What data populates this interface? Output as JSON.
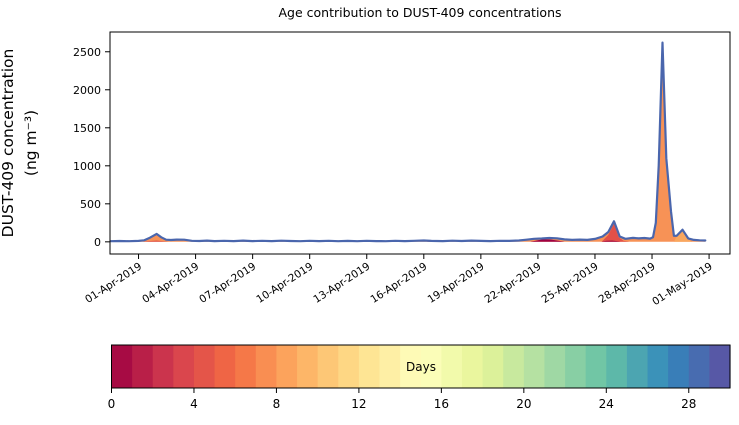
{
  "chart_data": {
    "type": "area",
    "title": "Age contribution to DUST-409 concentrations",
    "xlabel": "",
    "ylabel_line1": "DUST-409 concentration",
    "ylabel_line2": "(ng m⁻³)",
    "x_unit": "days since 01-Apr-2019 00:00",
    "xlim": [
      -1.5,
      31.1
    ],
    "ylim": [
      -160,
      2760
    ],
    "grid": false,
    "yticks": [
      0,
      500,
      1000,
      1500,
      2000,
      2500
    ],
    "xticks": {
      "positions": [
        0,
        3,
        6,
        9,
        12,
        15,
        18,
        21,
        24,
        27,
        30
      ],
      "labels": [
        "01-Apr-2019",
        "04-Apr-2019",
        "07-Apr-2019",
        "10-Apr-2019",
        "13-Apr-2019",
        "16-Apr-2019",
        "19-Apr-2019",
        "22-Apr-2019",
        "25-Apr-2019",
        "28-Apr-2019",
        "01-May-2019"
      ],
      "rotation_deg": -33
    },
    "line_color": "#4a66ad",
    "fill_color": "#f79256",
    "total": [
      [
        -1.45,
        8
      ],
      [
        -1.0,
        11
      ],
      [
        -0.5,
        8
      ],
      [
        0,
        12
      ],
      [
        0.3,
        20
      ],
      [
        0.6,
        55
      ],
      [
        0.95,
        105
      ],
      [
        1.2,
        60
      ],
      [
        1.45,
        28
      ],
      [
        1.7,
        24
      ],
      [
        2.0,
        30
      ],
      [
        2.4,
        28
      ],
      [
        2.8,
        14
      ],
      [
        3.2,
        11
      ],
      [
        3.6,
        16
      ],
      [
        4.0,
        10
      ],
      [
        4.5,
        14
      ],
      [
        5.0,
        10
      ],
      [
        5.5,
        16
      ],
      [
        6.0,
        10
      ],
      [
        6.5,
        13
      ],
      [
        7.0,
        10
      ],
      [
        7.5,
        15
      ],
      [
        8.0,
        11
      ],
      [
        8.5,
        9
      ],
      [
        9.0,
        14
      ],
      [
        9.5,
        10
      ],
      [
        10.0,
        13
      ],
      [
        10.5,
        9
      ],
      [
        11.0,
        12
      ],
      [
        11.5,
        9
      ],
      [
        12.0,
        14
      ],
      [
        12.5,
        10
      ],
      [
        13.0,
        9
      ],
      [
        13.5,
        13
      ],
      [
        14.0,
        10
      ],
      [
        14.5,
        14
      ],
      [
        15.0,
        18
      ],
      [
        15.4,
        12
      ],
      [
        16.0,
        10
      ],
      [
        16.5,
        15
      ],
      [
        17.0,
        11
      ],
      [
        17.5,
        16
      ],
      [
        18.0,
        12
      ],
      [
        18.5,
        10
      ],
      [
        19.0,
        14
      ],
      [
        19.5,
        12
      ],
      [
        20.0,
        18
      ],
      [
        20.4,
        28
      ],
      [
        20.8,
        40
      ],
      [
        21.2,
        44
      ],
      [
        21.6,
        50
      ],
      [
        22.0,
        46
      ],
      [
        22.4,
        32
      ],
      [
        22.8,
        26
      ],
      [
        23.2,
        30
      ],
      [
        23.6,
        25
      ],
      [
        24.0,
        38
      ],
      [
        24.4,
        70
      ],
      [
        24.7,
        130
      ],
      [
        25.0,
        270
      ],
      [
        25.3,
        70
      ],
      [
        25.6,
        40
      ],
      [
        26.0,
        52
      ],
      [
        26.3,
        45
      ],
      [
        26.6,
        50
      ],
      [
        26.9,
        42
      ],
      [
        27.05,
        60
      ],
      [
        27.2,
        250
      ],
      [
        27.35,
        1000
      ],
      [
        27.55,
        2620
      ],
      [
        27.75,
        1100
      ],
      [
        28.0,
        400
      ],
      [
        28.15,
        80
      ],
      [
        28.3,
        80
      ],
      [
        28.6,
        160
      ],
      [
        28.9,
        45
      ],
      [
        29.2,
        25
      ],
      [
        29.5,
        20
      ],
      [
        29.8,
        17
      ]
    ],
    "layers": [
      {
        "name": "aged-band-early",
        "color": "#e0544a",
        "points": [
          [
            0.2,
            0
          ],
          [
            0.5,
            10
          ],
          [
            0.95,
            17
          ],
          [
            1.3,
            9
          ],
          [
            1.6,
            0
          ]
        ]
      },
      {
        "name": "speck-day6",
        "color": "#e0544a",
        "points": [
          [
            5.55,
            0
          ],
          [
            5.7,
            6
          ],
          [
            5.85,
            0
          ]
        ]
      },
      {
        "name": "speck-day15",
        "color": "#d6494f",
        "points": [
          [
            15.15,
            0
          ],
          [
            15.3,
            7
          ],
          [
            15.45,
            0
          ]
        ]
      },
      {
        "name": "old-age-bump",
        "color": "#9e0142",
        "points": [
          [
            20.6,
            0
          ],
          [
            21.0,
            22
          ],
          [
            21.3,
            36
          ],
          [
            21.7,
            30
          ],
          [
            22.1,
            14
          ],
          [
            22.4,
            0
          ]
        ]
      },
      {
        "name": "red-spike-25apr",
        "color": "#e25048",
        "points": [
          [
            24.35,
            0
          ],
          [
            24.7,
            90
          ],
          [
            25.0,
            240
          ],
          [
            25.25,
            60
          ],
          [
            25.5,
            14
          ],
          [
            25.8,
            0
          ]
        ]
      },
      {
        "name": "maroon-strip-25apr",
        "color": "#a31045",
        "points": [
          [
            24.35,
            0
          ],
          [
            24.6,
            14
          ],
          [
            24.9,
            18
          ],
          [
            25.15,
            10
          ],
          [
            25.35,
            0
          ]
        ]
      },
      {
        "name": "light-spike-29apr",
        "color": "#f9a75f",
        "points": [
          [
            28.15,
            0
          ],
          [
            28.3,
            70
          ],
          [
            28.6,
            150
          ],
          [
            28.9,
            35
          ],
          [
            29.1,
            0
          ]
        ]
      }
    ],
    "colorbar": {
      "label": "Days",
      "vmin": 0,
      "vmax": 30,
      "ticks": [
        0,
        4,
        8,
        12,
        16,
        20,
        24,
        28
      ],
      "n_segments": 30,
      "colors": [
        "#a70b44",
        "#b91f48",
        "#cb344d",
        "#da464d",
        "#e45549",
        "#ef6545",
        "#f57848",
        "#f98e52",
        "#fca35c",
        "#fdb668",
        "#fdc776",
        "#fed784",
        "#fee594",
        "#feefa5",
        "#fefab6",
        "#fbfdb8",
        "#f2faab",
        "#eaf69e",
        "#dcf19a",
        "#c8e99e",
        "#b5e1a2",
        "#9fd8a4",
        "#88cfa4",
        "#71c6a5",
        "#5db8a9",
        "#4ca5b1",
        "#3b92b9",
        "#397eb8",
        "#486cb0",
        "#5758a6"
      ]
    }
  }
}
